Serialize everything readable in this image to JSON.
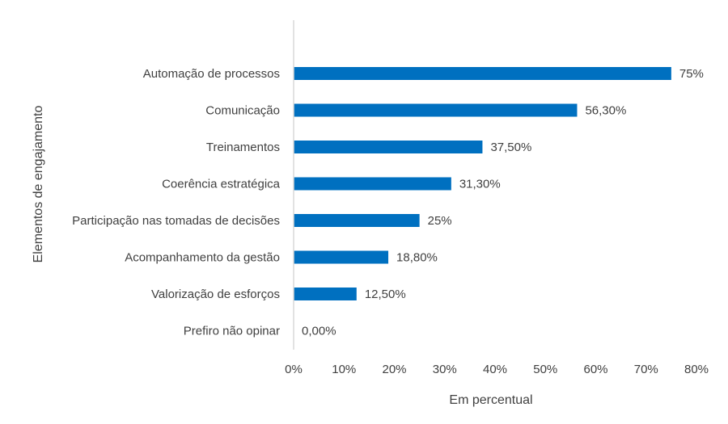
{
  "chart_data": {
    "type": "bar",
    "orientation": "horizontal",
    "title": "",
    "xlabel": "Em percentual",
    "ylabel": "Elementos de engajamento",
    "categories": [
      "Automação de processos",
      "Comunicação",
      "Treinamentos",
      "Coerência estratégica",
      "Participação nas tomadas de decisões",
      "Acompanhamento da gestão",
      "Valorização de esforços",
      "Prefiro não opinar"
    ],
    "values": [
      75,
      56.3,
      37.5,
      31.3,
      25,
      18.8,
      12.5,
      0
    ],
    "data_labels": [
      "75%",
      "56,30%",
      "37,50%",
      "31,30%",
      "25%",
      "18,80%",
      "12,50%",
      "0,00%"
    ],
    "xlim": [
      0,
      80
    ],
    "xticks": [
      0,
      10,
      20,
      30,
      40,
      50,
      60,
      70,
      80
    ],
    "xtick_labels": [
      "0%",
      "10%",
      "20%",
      "30%",
      "40%",
      "50%",
      "60%",
      "70%",
      "80%"
    ],
    "grid": false,
    "legend": "none",
    "bar_color": "#0070C0",
    "axis_color": "#D9D9D9"
  }
}
